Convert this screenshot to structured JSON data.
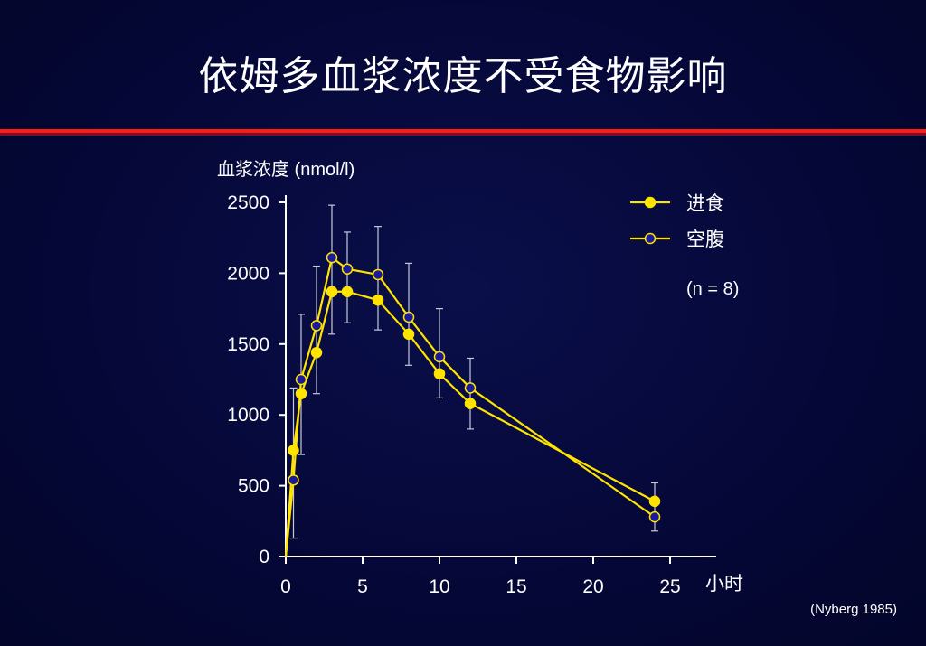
{
  "title": "依姆多血浆浓度不受食物影响",
  "citation": "(Nyberg 1985)",
  "colors": {
    "line": "#ffe400",
    "fed_marker": "#ffe400",
    "fasting_marker": "#1a1a9c",
    "error_bar": "#c8c8d8",
    "rule": "#ff1a1a"
  },
  "chart_data": {
    "type": "line",
    "ylabel": "血浆浓度 (nmol/l)",
    "xlabel": "小时",
    "xlim": [
      0,
      28
    ],
    "ylim": [
      0,
      2500
    ],
    "xticks": [
      0,
      5,
      10,
      15,
      20,
      25
    ],
    "yticks": [
      0,
      500,
      1000,
      1500,
      2000,
      2500
    ],
    "legend_note": "(n = 8)",
    "legend_position": "top-right",
    "series": [
      {
        "name": "进食",
        "marker": "filled",
        "x": [
          0,
          0.5,
          1,
          2,
          3,
          4,
          6,
          8,
          10,
          12,
          24
        ],
        "y": [
          0,
          750,
          1150,
          1440,
          1870,
          1870,
          1810,
          1570,
          1290,
          1080,
          390
        ]
      },
      {
        "name": "空腹",
        "marker": "open",
        "x": [
          0,
          0.5,
          1,
          2,
          3,
          4,
          6,
          8,
          10,
          12,
          24
        ],
        "y": [
          0,
          540,
          1250,
          1630,
          2110,
          2030,
          1990,
          1690,
          1410,
          1190,
          280
        ],
        "error_upper": [
          null,
          1190,
          1710,
          2050,
          2480,
          2290,
          2330,
          2070,
          1750,
          1400,
          520
        ],
        "error_lower": [
          null,
          130,
          720,
          1150,
          1570,
          1650,
          1600,
          1350,
          1120,
          900,
          180
        ]
      }
    ]
  }
}
